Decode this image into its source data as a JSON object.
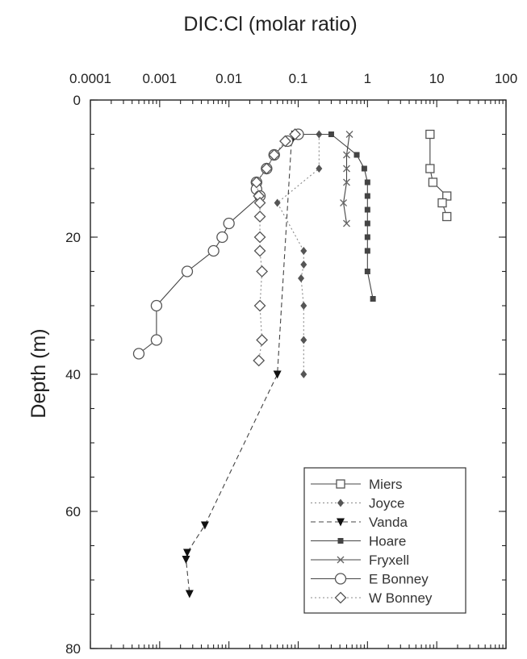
{
  "chart_data": {
    "type": "line",
    "title": "DIC:Cl (molar ratio)",
    "xlabel": "",
    "ylabel": "Depth (m)",
    "x_scale": "log",
    "x_axis_position": "top",
    "xlim": [
      0.0001,
      100
    ],
    "ylim": [
      0,
      80
    ],
    "y_inverted": true,
    "x_ticks": [
      {
        "value": 0.0001,
        "label": "0.0001"
      },
      {
        "value": 0.001,
        "label": "0.001"
      },
      {
        "value": 0.01,
        "label": "0.01"
      },
      {
        "value": 0.1,
        "label": "0.1"
      },
      {
        "value": 1,
        "label": "1"
      },
      {
        "value": 10,
        "label": "10"
      },
      {
        "value": 100,
        "label": "100"
      }
    ],
    "y_ticks": [
      {
        "value": 0,
        "label": "0"
      },
      {
        "value": 20,
        "label": "20"
      },
      {
        "value": 40,
        "label": "40"
      },
      {
        "value": 60,
        "label": "60"
      },
      {
        "value": 80,
        "label": "80"
      }
    ],
    "grid": false,
    "legend_position": "bottom-right",
    "series": [
      {
        "name": "Miers",
        "marker": "square-open",
        "line": "solid",
        "points": [
          [
            8,
            5
          ],
          [
            8,
            10
          ],
          [
            8.8,
            12
          ],
          [
            14,
            14
          ],
          [
            12,
            15
          ],
          [
            14,
            17
          ]
        ]
      },
      {
        "name": "Joyce",
        "marker": "diamond-filled",
        "line": "dotted",
        "points": [
          [
            0.2,
            5
          ],
          [
            0.2,
            10
          ],
          [
            0.05,
            15
          ],
          [
            0.12,
            22
          ],
          [
            0.12,
            24
          ],
          [
            0.11,
            26
          ],
          [
            0.12,
            30
          ],
          [
            0.12,
            35
          ],
          [
            0.12,
            40
          ]
        ]
      },
      {
        "name": "Vanda",
        "marker": "triangle-down-filled",
        "line": "dashed",
        "points": [
          [
            0.09,
            5
          ],
          [
            0.08,
            6
          ],
          [
            0.05,
            40
          ],
          [
            0.0045,
            62
          ],
          [
            0.0025,
            66
          ],
          [
            0.0024,
            67
          ],
          [
            0.0027,
            72
          ]
        ]
      },
      {
        "name": "Hoare",
        "marker": "square-filled",
        "line": "solid",
        "points": [
          [
            0.1,
            5
          ],
          [
            0.3,
            5
          ],
          [
            0.7,
            8
          ],
          [
            0.9,
            10
          ],
          [
            1,
            12
          ],
          [
            1,
            14
          ],
          [
            1,
            16
          ],
          [
            1,
            18
          ],
          [
            1,
            20
          ],
          [
            1,
            22
          ],
          [
            1,
            25
          ],
          [
            1.2,
            29
          ]
        ]
      },
      {
        "name": "Fryxell",
        "marker": "x",
        "line": "solid",
        "points": [
          [
            0.55,
            5
          ],
          [
            0.5,
            8
          ],
          [
            0.5,
            10
          ],
          [
            0.5,
            12
          ],
          [
            0.45,
            15
          ],
          [
            0.5,
            18
          ]
        ]
      },
      {
        "name": "E Bonney",
        "marker": "circle-open",
        "line": "solid",
        "points": [
          [
            0.1,
            5
          ],
          [
            0.07,
            6
          ],
          [
            0.045,
            8
          ],
          [
            0.035,
            10
          ],
          [
            0.025,
            12
          ],
          [
            0.025,
            13
          ],
          [
            0.028,
            14
          ],
          [
            0.01,
            18
          ],
          [
            0.008,
            20
          ],
          [
            0.006,
            22
          ],
          [
            0.0025,
            25
          ],
          [
            0.0009,
            30
          ],
          [
            0.0009,
            35
          ],
          [
            0.0005,
            37
          ]
        ]
      },
      {
        "name": "W Bonney",
        "marker": "diamond-open",
        "line": "dotted",
        "points": [
          [
            0.09,
            5
          ],
          [
            0.065,
            6
          ],
          [
            0.045,
            8
          ],
          [
            0.035,
            10
          ],
          [
            0.025,
            12
          ],
          [
            0.027,
            14
          ],
          [
            0.028,
            15
          ],
          [
            0.028,
            17
          ],
          [
            0.028,
            20
          ],
          [
            0.028,
            22
          ],
          [
            0.03,
            25
          ],
          [
            0.028,
            30
          ],
          [
            0.03,
            35
          ],
          [
            0.027,
            38
          ]
        ]
      }
    ]
  }
}
